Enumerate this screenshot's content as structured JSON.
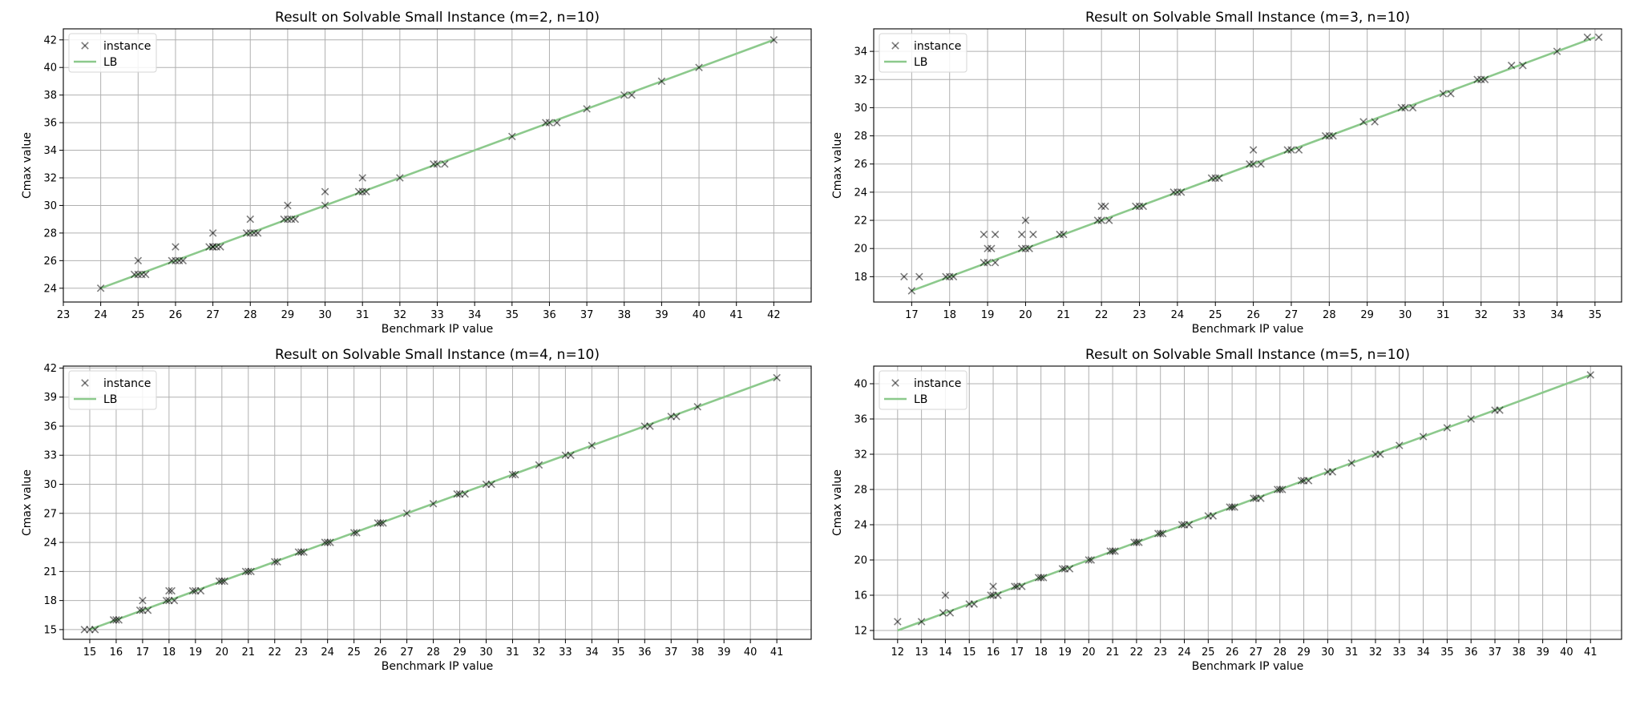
{
  "chart_data": [
    {
      "type": "scatter",
      "title": "Result on Solvable Small Instance (m=2, n=10)",
      "xlabel": "Benchmark IP value",
      "ylabel": "Cmax value",
      "xlim": [
        23,
        43
      ],
      "ylim": [
        23,
        42.8
      ],
      "xticks": [
        23,
        24,
        25,
        26,
        27,
        28,
        29,
        30,
        31,
        32,
        33,
        34,
        35,
        36,
        37,
        38,
        39,
        40,
        41,
        42
      ],
      "yticks": [
        24,
        26,
        28,
        30,
        32,
        34,
        36,
        38,
        40,
        42
      ],
      "grid": true,
      "legend_position": "top-left",
      "legend": [
        "instance",
        "LB"
      ],
      "series": [
        {
          "name": "instance",
          "marker": "x",
          "x": [
            24,
            25,
            25,
            25.1,
            25.2,
            24.9,
            26,
            26,
            25.9,
            26.1,
            26.2,
            27,
            27,
            27.1,
            27.2,
            26.9,
            27,
            28,
            28,
            27.9,
            28.1,
            28.2,
            29,
            29,
            29.2,
            28.9,
            29.1,
            30,
            30,
            31,
            31,
            30.9,
            31.1,
            32,
            33,
            32.9,
            33.2,
            35,
            36,
            35.9,
            36.2,
            37,
            38,
            38.2,
            39,
            40,
            42
          ],
          "y": [
            24,
            25,
            26,
            25,
            25,
            25,
            26,
            27,
            26,
            26,
            26,
            27,
            28,
            27,
            27,
            27,
            27,
            28,
            29,
            28,
            28,
            28,
            29,
            30,
            29,
            29,
            29,
            30,
            31,
            31,
            32,
            31,
            31,
            32,
            33,
            33,
            33,
            35,
            36,
            36,
            36,
            37,
            38,
            38,
            39,
            40,
            42
          ]
        },
        {
          "name": "LB",
          "type": "line",
          "x": [
            24,
            42
          ],
          "y": [
            24,
            42
          ]
        }
      ]
    },
    {
      "type": "scatter",
      "title": "Result on Solvable Small Instance (m=3, n=10)",
      "xlabel": "Benchmark IP value",
      "ylabel": "Cmax value",
      "xlim": [
        16,
        35.7
      ],
      "ylim": [
        16.2,
        35.6
      ],
      "xticks": [
        17,
        18,
        19,
        20,
        21,
        22,
        23,
        24,
        25,
        26,
        27,
        28,
        29,
        30,
        31,
        32,
        33,
        34,
        35
      ],
      "yticks": [
        18,
        20,
        22,
        24,
        26,
        28,
        30,
        32,
        34
      ],
      "grid": true,
      "legend_position": "top-left",
      "legend": [
        "instance",
        "LB"
      ],
      "series": [
        {
          "name": "instance",
          "marker": "x",
          "x": [
            16.8,
            17,
            17.2,
            17.9,
            18,
            18.1,
            18.9,
            18.9,
            19,
            19,
            19.1,
            19.2,
            19.2,
            19.9,
            19.9,
            20,
            20,
            20.1,
            20.2,
            20.9,
            21,
            21.9,
            22,
            22,
            22.2,
            22.1,
            23,
            23.1,
            22.9,
            24,
            24.1,
            23.9,
            25,
            25.1,
            24.9,
            26,
            26,
            25.9,
            26.2,
            27,
            26.9,
            27.2,
            28,
            28.1,
            27.9,
            28.9,
            29.2,
            30,
            29.9,
            30.2,
            31,
            31.2,
            32,
            31.9,
            32.1,
            32.8,
            33.1,
            34,
            34.8,
            35.1
          ],
          "y": [
            18,
            17,
            18,
            18,
            18,
            18,
            19,
            21,
            20,
            19,
            20,
            19,
            21,
            20,
            21,
            20,
            22,
            20,
            21,
            21,
            21,
            22,
            23,
            22,
            22,
            23,
            23,
            23,
            23,
            24,
            24,
            24,
            25,
            25,
            25,
            26,
            27,
            26,
            26,
            27,
            27,
            27,
            28,
            28,
            28,
            29,
            29,
            30,
            30,
            30,
            31,
            31,
            32,
            32,
            32,
            33,
            33,
            34,
            35,
            35
          ]
        },
        {
          "name": "LB",
          "type": "line",
          "x": [
            17,
            35
          ],
          "y": [
            17,
            35
          ]
        }
      ]
    },
    {
      "type": "scatter",
      "title": "Result on Solvable Small Instance (m=4, n=10)",
      "xlabel": "Benchmark IP value",
      "ylabel": "Cmax value",
      "xlim": [
        14,
        42.3
      ],
      "ylim": [
        14,
        42.2
      ],
      "xticks": [
        15,
        16,
        17,
        18,
        19,
        20,
        21,
        22,
        23,
        24,
        25,
        26,
        27,
        28,
        29,
        30,
        31,
        32,
        33,
        34,
        35,
        36,
        37,
        38,
        39,
        40,
        41
      ],
      "yticks": [
        15,
        18,
        21,
        24,
        27,
        30,
        33,
        36,
        39,
        42
      ],
      "grid": true,
      "legend_position": "top-left",
      "legend": [
        "instance",
        "LB"
      ],
      "series": [
        {
          "name": "instance",
          "marker": "x",
          "x": [
            14.8,
            15,
            15.2,
            16,
            15.9,
            16.1,
            17,
            17,
            16.9,
            17.2,
            18,
            18,
            17.9,
            18.2,
            18.1,
            19,
            18.9,
            19.2,
            20,
            19.9,
            20.1,
            21,
            20.9,
            21.1,
            22,
            22.1,
            23,
            22.9,
            23.1,
            24,
            23.9,
            24.1,
            25,
            25.1,
            26,
            25.9,
            26.1,
            27,
            28,
            29,
            28.9,
            29.2,
            30,
            30.2,
            31,
            31.1,
            32,
            33,
            33.2,
            34,
            36,
            36.2,
            37,
            37.2,
            38,
            41
          ],
          "y": [
            15,
            15,
            15,
            16,
            16,
            16,
            17,
            18,
            17,
            17,
            18,
            19,
            18,
            18,
            19,
            19,
            19,
            19,
            20,
            20,
            20,
            21,
            21,
            21,
            22,
            22,
            23,
            23,
            23,
            24,
            24,
            24,
            25,
            25,
            26,
            26,
            26,
            27,
            28,
            29,
            29,
            29,
            30,
            30,
            31,
            31,
            32,
            33,
            33,
            34,
            36,
            36,
            37,
            37,
            38,
            41
          ]
        },
        {
          "name": "LB",
          "type": "line",
          "x": [
            15,
            41
          ],
          "y": [
            15,
            41
          ]
        }
      ]
    },
    {
      "type": "scatter",
      "title": "Result on Solvable Small Instance (m=5, n=10)",
      "xlabel": "Benchmark IP value",
      "ylabel": "Cmax value",
      "xlim": [
        11,
        42.3
      ],
      "ylim": [
        11,
        42
      ],
      "xticks": [
        12,
        13,
        14,
        15,
        16,
        17,
        18,
        19,
        20,
        21,
        22,
        23,
        24,
        25,
        26,
        27,
        28,
        29,
        30,
        31,
        32,
        33,
        34,
        35,
        36,
        37,
        38,
        39,
        40,
        41
      ],
      "yticks": [
        12,
        16,
        20,
        24,
        28,
        32,
        36,
        40
      ],
      "grid": true,
      "legend_position": "top-left",
      "legend": [
        "instance",
        "LB"
      ],
      "series": [
        {
          "name": "instance",
          "marker": "x",
          "x": [
            12,
            13,
            13.9,
            14,
            14.2,
            15,
            15.2,
            16,
            16,
            15.9,
            16.2,
            17,
            16.9,
            17.2,
            18,
            17.9,
            18.1,
            19,
            18.9,
            19.2,
            20,
            20.1,
            21,
            20.9,
            21.1,
            22,
            21.9,
            22.1,
            23,
            22.9,
            23.1,
            24,
            23.9,
            24.2,
            25,
            25.2,
            26,
            25.9,
            26.1,
            27,
            26.9,
            27.2,
            28,
            27.9,
            28.1,
            29,
            28.9,
            29.2,
            30,
            30.2,
            31,
            32,
            32.2,
            33,
            34,
            35,
            36,
            37,
            37.2,
            41
          ],
          "y": [
            13,
            13,
            14,
            16,
            14,
            15,
            15,
            16,
            17,
            16,
            16,
            17,
            17,
            17,
            18,
            18,
            18,
            19,
            19,
            19,
            20,
            20,
            21,
            21,
            21,
            22,
            22,
            22,
            23,
            23,
            23,
            24,
            24,
            24,
            25,
            25,
            26,
            26,
            26,
            27,
            27,
            27,
            28,
            28,
            28,
            29,
            29,
            29,
            30,
            30,
            31,
            32,
            32,
            33,
            34,
            35,
            36,
            37,
            37,
            41
          ]
        },
        {
          "name": "LB",
          "type": "line",
          "x": [
            12,
            41
          ],
          "y": [
            12,
            41
          ]
        }
      ]
    }
  ]
}
